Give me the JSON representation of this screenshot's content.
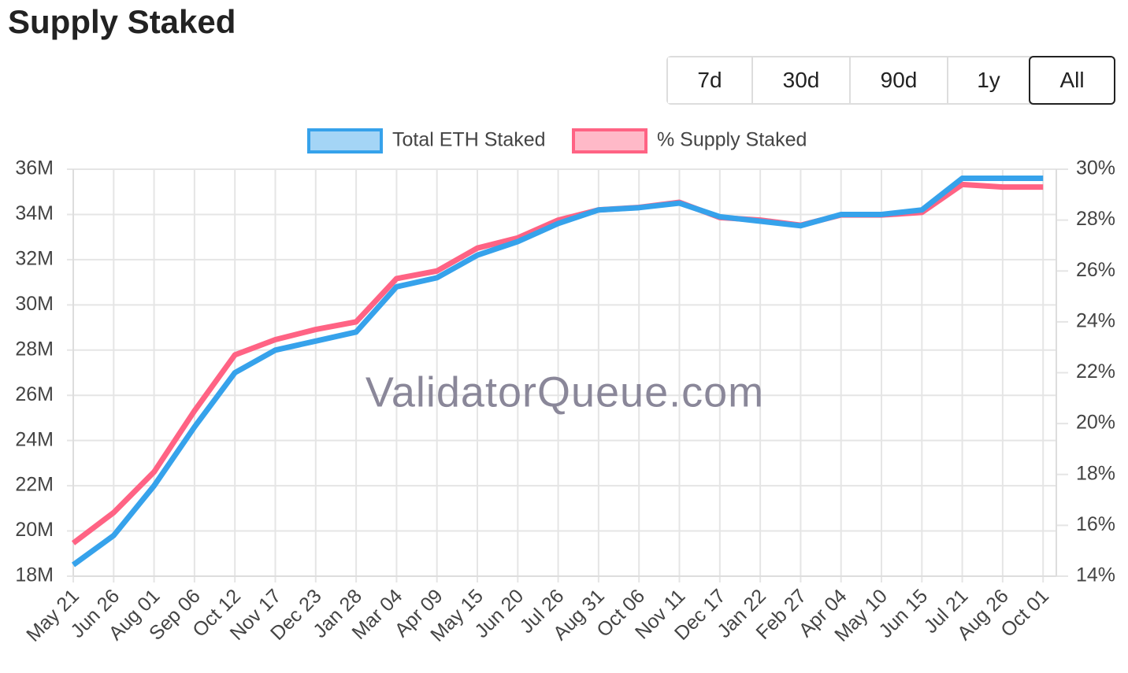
{
  "header": {
    "title": "Supply Staked"
  },
  "range_buttons": [
    "7d",
    "30d",
    "90d",
    "1y",
    "All"
  ],
  "chart_data": {
    "type": "line",
    "watermark": "ValidatorQueue.com",
    "categories": [
      "May 21",
      "Jun 26",
      "Aug 01",
      "Sep 06",
      "Oct 12",
      "Nov 17",
      "Dec 23",
      "Jan 28",
      "Mar 04",
      "Apr 09",
      "May 15",
      "Jun 20",
      "Jul 26",
      "Aug 31",
      "Oct 06",
      "Nov 11",
      "Dec 17",
      "Jan 22",
      "Feb 27",
      "Apr 04",
      "May 10",
      "Jun 15",
      "Jul 21",
      "Aug 26",
      "Oct 01"
    ],
    "series": [
      {
        "name": "Total ETH Staked",
        "color": "#36a2eb",
        "values": [
          18500000,
          19800000,
          22000000,
          24600000,
          27000000,
          28000000,
          28400000,
          28800000,
          30800000,
          31200000,
          32200000,
          32800000,
          33600000,
          34200000,
          34300000,
          34500000,
          33900000,
          33700000,
          33500000,
          34000000,
          34000000,
          34200000,
          35600000,
          35600000,
          35600000
        ]
      },
      {
        "name": "% Supply Staked",
        "color": "#ff6384",
        "axis": "y2",
        "values": [
          15.3,
          16.5,
          18.1,
          20.5,
          22.7,
          23.3,
          23.7,
          24.0,
          25.7,
          26.0,
          26.9,
          27.3,
          28.0,
          28.4,
          28.5,
          28.7,
          28.1,
          28.0,
          27.8,
          28.2,
          28.2,
          28.3,
          29.4,
          29.3,
          29.3
        ]
      }
    ],
    "ylim": [
      18000000,
      36000000
    ],
    "yticks": [
      {
        "value": 18000000,
        "label": "18M"
      },
      {
        "value": 20000000,
        "label": "20M"
      },
      {
        "value": 22000000,
        "label": "22M"
      },
      {
        "value": 24000000,
        "label": "24M"
      },
      {
        "value": 26000000,
        "label": "26M"
      },
      {
        "value": 28000000,
        "label": "28M"
      },
      {
        "value": 30000000,
        "label": "30M"
      },
      {
        "value": 32000000,
        "label": "32M"
      },
      {
        "value": 34000000,
        "label": "34M"
      },
      {
        "value": 36000000,
        "label": "36M"
      }
    ],
    "y2lim": [
      14,
      30
    ],
    "y2ticks": [
      {
        "value": 14,
        "label": "14%"
      },
      {
        "value": 16,
        "label": "16%"
      },
      {
        "value": 18,
        "label": "18%"
      },
      {
        "value": 20,
        "label": "20%"
      },
      {
        "value": 22,
        "label": "22%"
      },
      {
        "value": 24,
        "label": "24%"
      },
      {
        "value": 26,
        "label": "26%"
      },
      {
        "value": 28,
        "label": "28%"
      },
      {
        "value": 30,
        "label": "30%"
      }
    ],
    "grid": true,
    "legend": "top"
  }
}
